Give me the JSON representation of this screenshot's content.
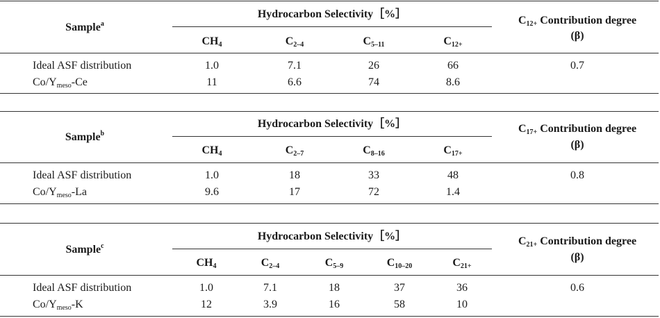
{
  "table_a": {
    "sample_header": "Sample",
    "sample_mark": "a",
    "selectivity_header": "Hydrocarbon Selectivity［%］",
    "contribution_header_prefix": "C",
    "contribution_header_sub": "12+",
    "contribution_header_rest": " Contribution degree",
    "beta_label": "(β)",
    "columns": [
      {
        "main": "CH",
        "sub": "4"
      },
      {
        "main": "C",
        "sub": "2–4"
      },
      {
        "main": "C",
        "sub": "5–11"
      },
      {
        "main": "C",
        "sub": "12+"
      }
    ],
    "rows": [
      {
        "name": "Ideal ASF distribution",
        "name_sub": "",
        "name_after": "",
        "values": [
          "1.0",
          "7.1",
          "26",
          "66"
        ],
        "beta": "0.7"
      },
      {
        "name": "Co/Y",
        "name_sub": "meso",
        "name_after": "-Ce",
        "values": [
          "11",
          "6.6",
          "74",
          "8.6"
        ],
        "beta": ""
      }
    ]
  },
  "table_b": {
    "sample_header": "Sample",
    "sample_mark": "b",
    "selectivity_header": "Hydrocarbon Selectivity［%］",
    "contribution_header_prefix": "C",
    "contribution_header_sub": "17+",
    "contribution_header_rest": " Contribution degree",
    "beta_label": "(β)",
    "columns": [
      {
        "main": "CH",
        "sub": "4"
      },
      {
        "main": "C",
        "sub": "2–7"
      },
      {
        "main": "C",
        "sub": "8–16"
      },
      {
        "main": "C",
        "sub": "17+"
      }
    ],
    "rows": [
      {
        "name": "Ideal ASF distribution",
        "name_sub": "",
        "name_after": "",
        "values": [
          "1.0",
          "18",
          "33",
          "48"
        ],
        "beta": "0.8"
      },
      {
        "name": "Co/Y",
        "name_sub": "meso",
        "name_after": "-La",
        "values": [
          "9.6",
          "17",
          "72",
          "1.4"
        ],
        "beta": ""
      }
    ]
  },
  "table_c": {
    "sample_header": "Sample",
    "sample_mark": "c",
    "selectivity_header": "Hydrocarbon Selectivity［%］",
    "contribution_header_prefix": "C",
    "contribution_header_sub": "21+",
    "contribution_header_rest": " Contribution degree",
    "beta_label": "(β)",
    "columns": [
      {
        "main": "CH",
        "sub": "4"
      },
      {
        "main": "C",
        "sub": "2–4"
      },
      {
        "main": "C",
        "sub": "5–9"
      },
      {
        "main": "C",
        "sub": "10–20"
      },
      {
        "main": "C",
        "sub": "21+"
      }
    ],
    "rows": [
      {
        "name": "Ideal ASF distribution",
        "name_sub": "",
        "name_after": "",
        "values": [
          "1.0",
          "7.1",
          "18",
          "37",
          "36"
        ],
        "beta": "0.6"
      },
      {
        "name": "Co/Y",
        "name_sub": "meso",
        "name_after": "-K",
        "values": [
          "12",
          "3.9",
          "16",
          "58",
          "10"
        ],
        "beta": ""
      }
    ]
  }
}
